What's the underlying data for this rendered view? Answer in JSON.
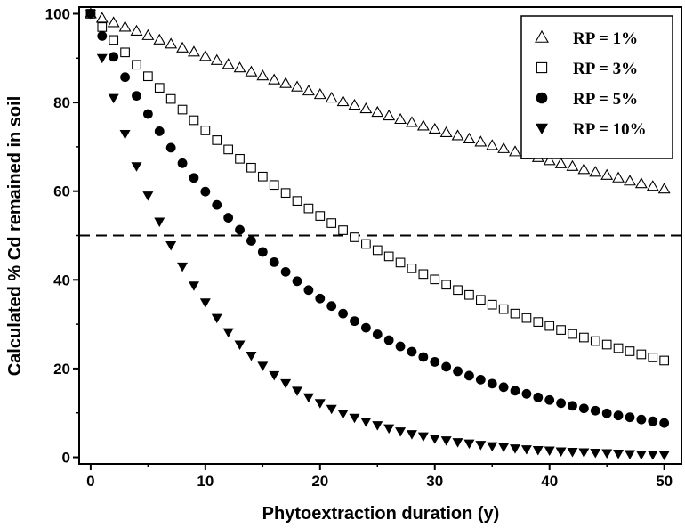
{
  "chart_data": {
    "type": "scatter",
    "xlabel": "Phytoextraction duration (y)",
    "ylabel": "Calculated % Cd remained in soil",
    "xlim": [
      -1,
      51.5
    ],
    "ylim": [
      -1.5,
      101.5
    ],
    "xticks": [
      0,
      10,
      20,
      30,
      40,
      50
    ],
    "yticks": [
      0,
      20,
      40,
      60,
      80,
      100
    ],
    "x_tick_labels": [
      "0",
      "10",
      "20",
      "30",
      "40",
      "50"
    ],
    "y_tick_labels": [
      "0",
      "20",
      "40",
      "60",
      "80",
      "100"
    ],
    "legend_position": "top-right",
    "reference_line": {
      "y": 50,
      "style": "dashed"
    },
    "x": [
      0,
      1,
      2,
      3,
      4,
      5,
      6,
      7,
      8,
      9,
      10,
      11,
      12,
      13,
      14,
      15,
      16,
      17,
      18,
      19,
      20,
      21,
      22,
      23,
      24,
      25,
      26,
      27,
      28,
      29,
      30,
      31,
      32,
      33,
      34,
      35,
      36,
      37,
      38,
      39,
      40,
      41,
      42,
      43,
      44,
      45,
      46,
      47,
      48,
      49,
      50
    ],
    "series": [
      {
        "name": "RP = 1%",
        "marker": "triangle-up-open",
        "values": [
          100,
          99,
          98,
          97,
          96.1,
          95.1,
          94.1,
          93.2,
          92.3,
          91.4,
          90.4,
          89.5,
          88.6,
          87.8,
          86.9,
          86,
          85.1,
          84.3,
          83.5,
          82.6,
          81.8,
          81,
          80.2,
          79.4,
          78.6,
          77.8,
          77,
          76.2,
          75.5,
          74.7,
          74,
          73.2,
          72.5,
          71.8,
          71.1,
          70.3,
          69.6,
          68.9,
          68.2,
          67.6,
          66.9,
          66.2,
          65.6,
          64.9,
          64.3,
          63.6,
          63,
          62.3,
          61.7,
          61.1,
          60.5
        ]
      },
      {
        "name": "RP = 3%",
        "marker": "square-open",
        "values": [
          100,
          97,
          94.1,
          91.3,
          88.5,
          85.9,
          83.3,
          80.8,
          78.4,
          76,
          73.7,
          71.5,
          69.4,
          67.3,
          65.3,
          63.3,
          61.4,
          59.6,
          57.8,
          56.1,
          54.4,
          52.8,
          51.2,
          49.6,
          48.1,
          46.7,
          45.3,
          43.9,
          42.6,
          41.3,
          40.1,
          38.9,
          37.7,
          36.6,
          35.5,
          34.4,
          33.4,
          32.4,
          31.4,
          30.5,
          29.6,
          28.7,
          27.8,
          27,
          26.2,
          25.4,
          24.6,
          23.9,
          23.2,
          22.5,
          21.8
        ]
      },
      {
        "name": "RP = 5%",
        "marker": "circle-filled",
        "values": [
          100,
          95,
          90.3,
          85.7,
          81.5,
          77.4,
          73.5,
          69.8,
          66.3,
          63,
          59.9,
          56.9,
          54,
          51.3,
          48.8,
          46.3,
          44,
          41.8,
          39.7,
          37.7,
          35.8,
          34.1,
          32.4,
          30.7,
          29.2,
          27.7,
          26.4,
          25,
          23.8,
          22.6,
          21.5,
          20.4,
          19.4,
          18.4,
          17.5,
          16.6,
          15.8,
          15,
          14.3,
          13.5,
          12.9,
          12.2,
          11.6,
          11,
          10.5,
          9.9,
          9.4,
          9,
          8.5,
          8.1,
          7.7
        ]
      },
      {
        "name": "RP = 10%",
        "marker": "triangle-down-filled",
        "values": [
          100,
          90,
          81,
          72.9,
          65.6,
          59,
          53.1,
          47.8,
          43,
          38.7,
          34.9,
          31.4,
          28.2,
          25.4,
          22.9,
          20.6,
          18.5,
          16.7,
          15,
          13.5,
          12.2,
          10.9,
          9.8,
          8.9,
          8,
          7.2,
          6.5,
          5.8,
          5.2,
          4.7,
          4.2,
          3.8,
          3.4,
          3.1,
          2.8,
          2.5,
          2.3,
          2,
          1.8,
          1.6,
          1.5,
          1.3,
          1.2,
          1.1,
          1,
          0.9,
          0.8,
          0.7,
          0.6,
          0.6,
          0.5
        ]
      }
    ]
  }
}
